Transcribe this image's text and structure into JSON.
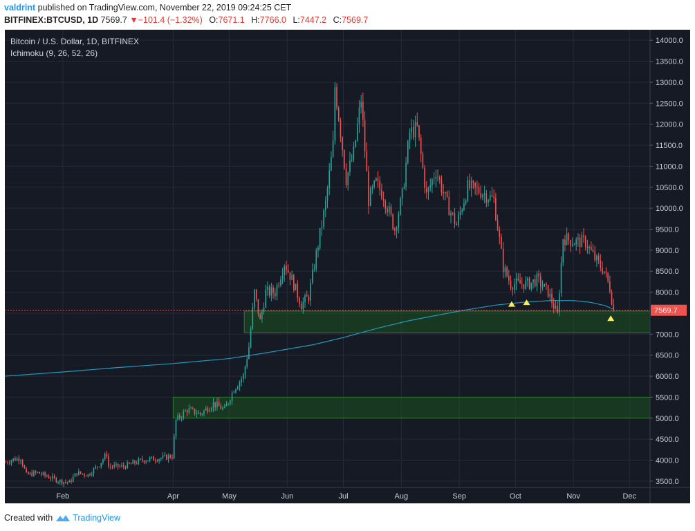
{
  "header": {
    "publisher_user": "valdrint",
    "publisher_text": "published on TradingView.com, November 22, 2019 09:24:25 CET",
    "symbol": "BITFINEX:BTCUSD, 1D",
    "last": "7569.7",
    "change": "−101.4 (−1.32%)",
    "o_label": "O:",
    "o": "7671.1",
    "h_label": "H:",
    "h": "7766.0",
    "l_label": "L:",
    "l": "7447.2",
    "c_label": "C:",
    "c": "7569.7"
  },
  "footer": {
    "created_with": "Created with",
    "brand": "TradingView"
  },
  "colors": {
    "background": "#161a25",
    "grid": "#262b38",
    "up": "#26a69a",
    "down": "#ef5350",
    "ma": "#1e9bbd",
    "zone_fill": "#1b5e20",
    "zone_stroke": "#2e7d32",
    "price_line": "#ef5350",
    "marker": "#ffee58",
    "axis_text": "#c8ccd4"
  },
  "chart_data": {
    "type": "candlestick",
    "title": "Bitcoin / U.S. Dollar, 1D, BITFINEX",
    "subtitle": "Ichimoku (9, 26, 52, 26)",
    "last_price_label": "7569.7",
    "y_axis": {
      "ticks": [
        3500,
        4000,
        4500,
        5000,
        5500,
        6000,
        6500,
        7000,
        7500,
        8000,
        8500,
        9000,
        9500,
        10000,
        10500,
        11000,
        11500,
        12000,
        12500,
        13000,
        13500,
        14000
      ],
      "range": [
        3350,
        14250
      ]
    },
    "x_axis": {
      "ticks": [
        {
          "label": "Feb",
          "date": "2019-02-01"
        },
        {
          "label": "Apr",
          "date": "2019-04-01"
        },
        {
          "label": "May",
          "date": "2019-05-01"
        },
        {
          "label": "Jun",
          "date": "2019-06-01"
        },
        {
          "label": "Jul",
          "date": "2019-07-01"
        },
        {
          "label": "Aug",
          "date": "2019-08-01"
        },
        {
          "label": "Sep",
          "date": "2019-09-01"
        },
        {
          "label": "Oct",
          "date": "2019-10-01"
        },
        {
          "label": "Nov",
          "date": "2019-11-01"
        },
        {
          "label": "Dec",
          "date": "2019-12-01"
        }
      ],
      "range": [
        "2019-01-01",
        "2019-12-12"
      ]
    },
    "zones": [
      {
        "from_date": "2019-05-09",
        "to_date": "2019-12-12",
        "low": 7030,
        "high": 7550
      },
      {
        "from_date": "2019-04-01",
        "to_date": "2019-12-12",
        "low": 5000,
        "high": 5500
      }
    ],
    "triangles": [
      {
        "date": "2019-09-29",
        "value": 7720
      },
      {
        "date": "2019-10-07",
        "value": 7760
      },
      {
        "date": "2019-11-21",
        "value": 7380
      }
    ],
    "moving_average": [
      {
        "date": "2019-01-01",
        "value": 6000
      },
      {
        "date": "2019-02-01",
        "value": 6100
      },
      {
        "date": "2019-03-01",
        "value": 6200
      },
      {
        "date": "2019-04-01",
        "value": 6300
      },
      {
        "date": "2019-05-01",
        "value": 6420
      },
      {
        "date": "2019-05-20",
        "value": 6550
      },
      {
        "date": "2019-06-15",
        "value": 6750
      },
      {
        "date": "2019-07-01",
        "value": 6920
      },
      {
        "date": "2019-07-20",
        "value": 7150
      },
      {
        "date": "2019-08-05",
        "value": 7320
      },
      {
        "date": "2019-08-20",
        "value": 7450
      },
      {
        "date": "2019-09-05",
        "value": 7580
      },
      {
        "date": "2019-09-20",
        "value": 7690
      },
      {
        "date": "2019-10-05",
        "value": 7760
      },
      {
        "date": "2019-10-20",
        "value": 7800
      },
      {
        "date": "2019-11-01",
        "value": 7800
      },
      {
        "date": "2019-11-10",
        "value": 7760
      },
      {
        "date": "2019-11-18",
        "value": 7680
      },
      {
        "date": "2019-11-22",
        "value": 7600
      }
    ],
    "candles": [
      {
        "date": "2019-01-01",
        "close": 3950
      },
      {
        "date": "2019-01-05",
        "close": 4020
      },
      {
        "date": "2019-01-09",
        "close": 4050
      },
      {
        "date": "2019-01-12",
        "close": 3650
      },
      {
        "date": "2019-01-18",
        "close": 3700
      },
      {
        "date": "2019-01-24",
        "close": 3600
      },
      {
        "date": "2019-01-30",
        "close": 3500
      },
      {
        "date": "2019-02-04",
        "close": 3470
      },
      {
        "date": "2019-02-08",
        "close": 3700
      },
      {
        "date": "2019-02-14",
        "close": 3650
      },
      {
        "date": "2019-02-20",
        "close": 3900
      },
      {
        "date": "2019-02-24",
        "close": 4150
      },
      {
        "date": "2019-02-25",
        "close": 3850
      },
      {
        "date": "2019-03-05",
        "close": 3850
      },
      {
        "date": "2019-03-15",
        "close": 4000
      },
      {
        "date": "2019-03-25",
        "close": 4050
      },
      {
        "date": "2019-03-31",
        "close": 4100
      },
      {
        "date": "2019-04-02",
        "close": 4950
      },
      {
        "date": "2019-04-08",
        "close": 5200
      },
      {
        "date": "2019-04-15",
        "close": 5100
      },
      {
        "date": "2019-04-22",
        "close": 5350
      },
      {
        "date": "2019-04-28",
        "close": 5200
      },
      {
        "date": "2019-05-03",
        "close": 5700
      },
      {
        "date": "2019-05-08",
        "close": 6000
      },
      {
        "date": "2019-05-11",
        "close": 6700
      },
      {
        "date": "2019-05-14",
        "close": 8000
      },
      {
        "date": "2019-05-17",
        "close": 7300
      },
      {
        "date": "2019-05-20",
        "close": 8000
      },
      {
        "date": "2019-05-25",
        "close": 8000
      },
      {
        "date": "2019-05-30",
        "close": 8700
      },
      {
        "date": "2019-06-03",
        "close": 8300
      },
      {
        "date": "2019-06-08",
        "close": 7700
      },
      {
        "date": "2019-06-12",
        "close": 7900
      },
      {
        "date": "2019-06-16",
        "close": 8900
      },
      {
        "date": "2019-06-21",
        "close": 10100
      },
      {
        "date": "2019-06-25",
        "close": 11500
      },
      {
        "date": "2019-06-26",
        "close": 12900
      },
      {
        "date": "2019-06-28",
        "close": 12200
      },
      {
        "date": "2019-07-02",
        "close": 10700
      },
      {
        "date": "2019-07-06",
        "close": 11300
      },
      {
        "date": "2019-07-10",
        "close": 12600
      },
      {
        "date": "2019-07-14",
        "close": 10200
      },
      {
        "date": "2019-07-18",
        "close": 10600
      },
      {
        "date": "2019-07-22",
        "close": 10300
      },
      {
        "date": "2019-07-28",
        "close": 9500
      },
      {
        "date": "2019-08-01",
        "close": 10300
      },
      {
        "date": "2019-08-05",
        "close": 11800
      },
      {
        "date": "2019-08-09",
        "close": 11900
      },
      {
        "date": "2019-08-14",
        "close": 10300
      },
      {
        "date": "2019-08-19",
        "close": 10900
      },
      {
        "date": "2019-08-25",
        "close": 10100
      },
      {
        "date": "2019-08-30",
        "close": 9600
      },
      {
        "date": "2019-09-05",
        "close": 10500
      },
      {
        "date": "2019-09-12",
        "close": 10400
      },
      {
        "date": "2019-09-19",
        "close": 10200
      },
      {
        "date": "2019-09-24",
        "close": 8600
      },
      {
        "date": "2019-09-28",
        "close": 8200
      },
      {
        "date": "2019-10-03",
        "close": 8200
      },
      {
        "date": "2019-10-08",
        "close": 8200
      },
      {
        "date": "2019-10-12",
        "close": 8300
      },
      {
        "date": "2019-10-18",
        "close": 8000
      },
      {
        "date": "2019-10-23",
        "close": 7450
      },
      {
        "date": "2019-10-26",
        "close": 9300
      },
      {
        "date": "2019-11-01",
        "close": 9200
      },
      {
        "date": "2019-11-07",
        "close": 9200
      },
      {
        "date": "2019-11-12",
        "close": 8800
      },
      {
        "date": "2019-11-17",
        "close": 8500
      },
      {
        "date": "2019-11-20",
        "close": 8100
      },
      {
        "date": "2019-11-22",
        "close": 7570
      }
    ]
  }
}
